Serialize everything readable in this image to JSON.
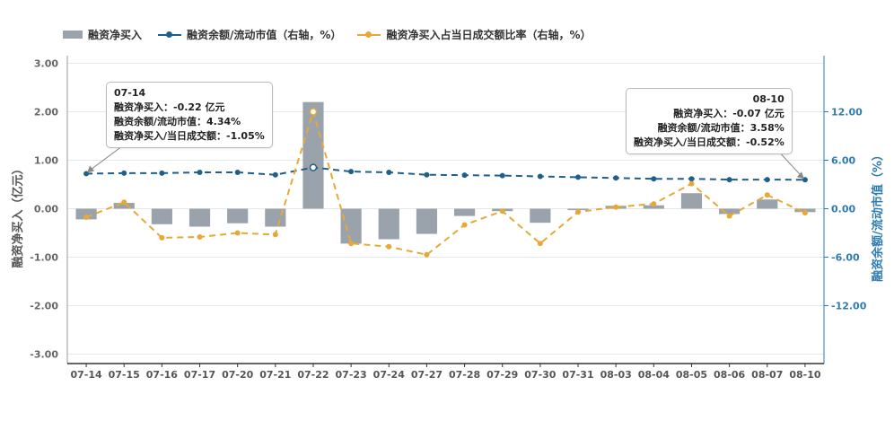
{
  "legend": {
    "bar": "融资净买入",
    "line1": "融资余额/流动市值（右轴，%）",
    "line2": "融资净买入占当日成交额比率（右轴，%）"
  },
  "axes": {
    "left_label": "融资净买入（亿元）",
    "right_label": "融资余额/流动市值（%）",
    "left_ticks": [
      "3.00",
      "2.00",
      "1.00",
      "0.00",
      "-1.00",
      "-2.00",
      "-3.00"
    ],
    "right_ticks": [
      "12.00",
      "6.00",
      "0.00",
      "-6.00",
      "-12.00"
    ]
  },
  "callouts": {
    "first": {
      "date": "07-14",
      "net_buy": "融资净买入：-0.22 亿元",
      "balance": "融资余额/流动市值：4.34%",
      "ratio": "融资净买入/当日成交额：-1.05%"
    },
    "last": {
      "date": "08-10",
      "net_buy": "融资净买入：-0.07 亿元",
      "balance": "融资余额/流动市值：3.58%",
      "ratio": "融资净买入/当日成交额：-0.52%"
    }
  },
  "colors": {
    "bar": "#9aa3ab",
    "balance_line": "#1f5f8b",
    "ratio_line": "#e8a838",
    "right_axis": "#2e7bb0",
    "grid": "#e3e8ec"
  },
  "chart_data": {
    "type": "bar",
    "categories": [
      "07-14",
      "07-15",
      "07-16",
      "07-17",
      "07-20",
      "07-21",
      "07-22",
      "07-23",
      "07-24",
      "07-27",
      "07-28",
      "07-29",
      "07-30",
      "07-31",
      "08-03",
      "08-04",
      "08-05",
      "08-06",
      "08-07",
      "08-10"
    ],
    "left_ylim": [
      -3,
      3
    ],
    "right_ylim": [
      -18,
      18
    ],
    "series": [
      {
        "name": "融资净买入",
        "type": "bar",
        "axis": "left",
        "values": [
          -0.22,
          0.12,
          -0.32,
          -0.37,
          -0.3,
          -0.37,
          2.2,
          -0.72,
          -0.63,
          -0.52,
          -0.15,
          -0.05,
          -0.29,
          -0.03,
          0.06,
          0.07,
          0.32,
          -0.11,
          0.19,
          -0.07
        ]
      },
      {
        "name": "融资余额/流动市值（右轴，%）",
        "type": "line",
        "axis": "right",
        "values": [
          4.34,
          4.4,
          4.4,
          4.5,
          4.5,
          4.2,
          5.1,
          4.6,
          4.5,
          4.2,
          4.15,
          4.1,
          4.0,
          3.9,
          3.8,
          3.7,
          3.7,
          3.6,
          3.6,
          3.58
        ]
      },
      {
        "name": "融资净买入占当日成交额比率（右轴，%）",
        "type": "line",
        "axis": "right",
        "values": [
          -1.05,
          0.8,
          -3.6,
          -3.5,
          -3.0,
          -3.2,
          12.0,
          -4.3,
          -4.7,
          -5.7,
          -2.0,
          -0.3,
          -4.3,
          -0.4,
          0.2,
          0.6,
          3.1,
          -0.9,
          1.7,
          -0.52
        ]
      }
    ]
  }
}
